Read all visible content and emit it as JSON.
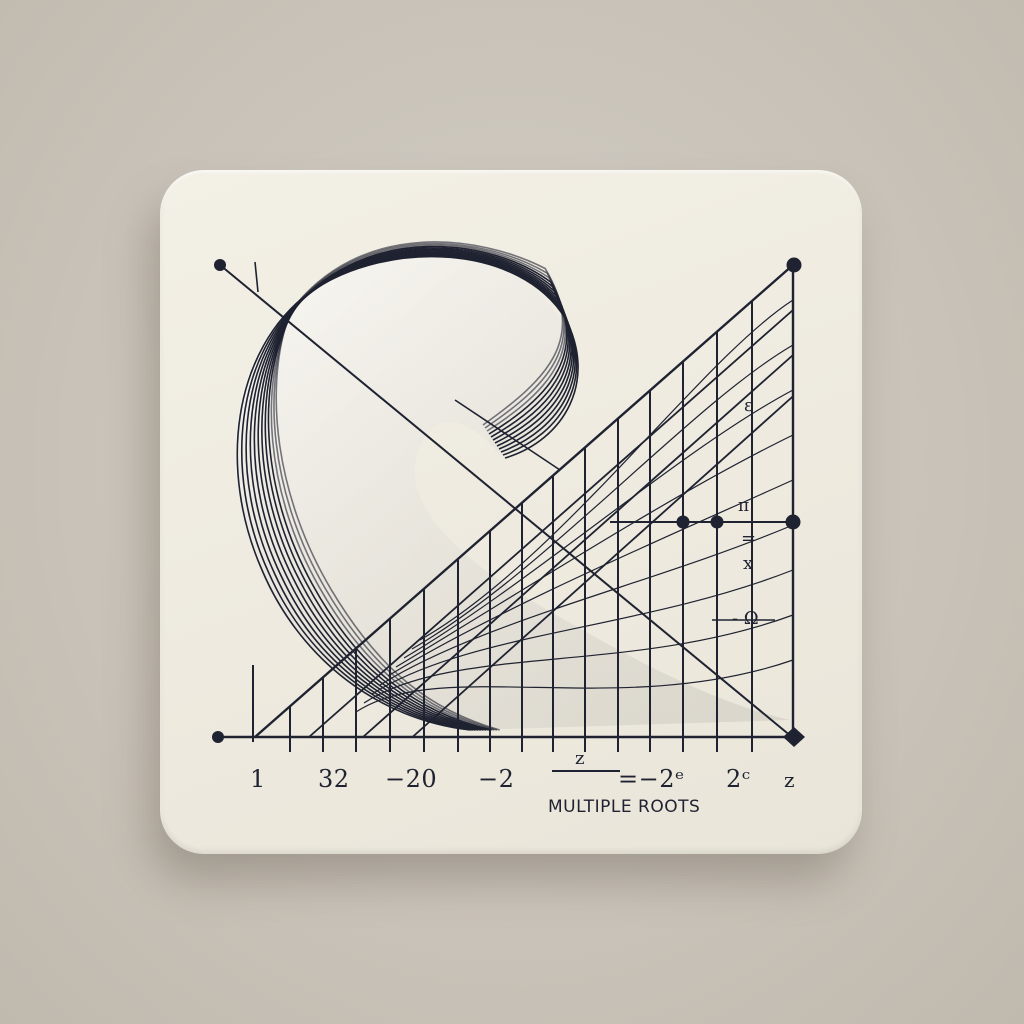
{
  "caption": "MULTIPLE ROOTS",
  "x_tick_labels": [
    "1",
    "32",
    "−20",
    "−2",
    "=−2ᵉ",
    "2ᶜ",
    "z"
  ],
  "fraction_label": "z",
  "side_labels": {
    "top": "ε",
    "mid_top": "π",
    "mid_eq": "=",
    "mid_x": "x",
    "lower": "- Ω"
  },
  "colors": {
    "ink": "#1f2230",
    "card": "#eeeadf",
    "background": "#c9c3b9"
  }
}
